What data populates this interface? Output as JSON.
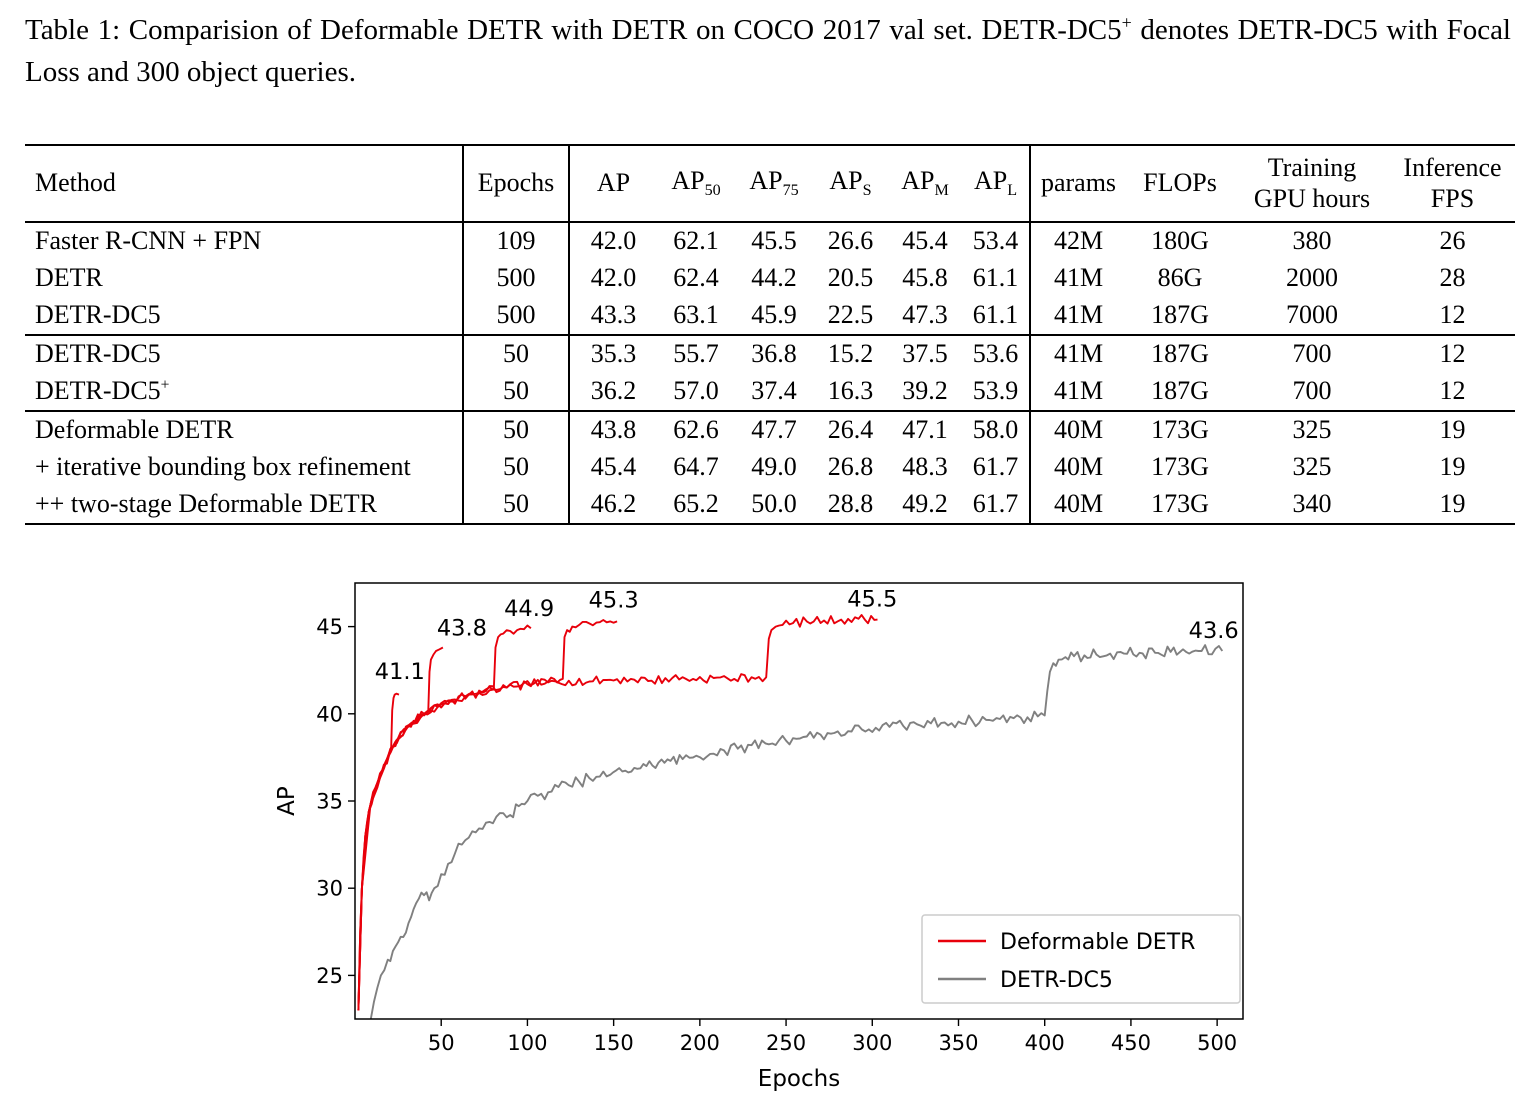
{
  "caption": {
    "part1": "Table 1:  Comparision of Deformable DETR with DETR on COCO 2017 val set. DETR-DC5",
    "sup": "+",
    "part2": " denotes DETR-DC5 with Focal Loss and 300 object queries."
  },
  "table": {
    "headers": [
      {
        "label": "Method"
      },
      {
        "label": "Epochs"
      },
      {
        "label": "AP"
      },
      {
        "label": "AP",
        "sub": "50"
      },
      {
        "label": "AP",
        "sub": "75"
      },
      {
        "label": "AP",
        "sub": "S"
      },
      {
        "label": "AP",
        "sub": "M"
      },
      {
        "label": "AP",
        "sub": "L"
      },
      {
        "label": "params"
      },
      {
        "label": "FLOPs"
      },
      {
        "label": "Training",
        "label2": "GPU hours"
      },
      {
        "label": "Inference",
        "label2": "FPS"
      }
    ],
    "groups": [
      {
        "rows": [
          {
            "method": "Faster R-CNN + FPN",
            "values": [
              "109",
              "42.0",
              "62.1",
              "45.5",
              "26.6",
              "45.4",
              "53.4",
              "42M",
              "180G",
              "380",
              "26"
            ]
          },
          {
            "method": "DETR",
            "values": [
              "500",
              "42.0",
              "62.4",
              "44.2",
              "20.5",
              "45.8",
              "61.1",
              "41M",
              "86G",
              "2000",
              "28"
            ]
          },
          {
            "method": "DETR-DC5",
            "values": [
              "500",
              "43.3",
              "63.1",
              "45.9",
              "22.5",
              "47.3",
              "61.1",
              "41M",
              "187G",
              "7000",
              "12"
            ]
          }
        ]
      },
      {
        "rows": [
          {
            "method": "DETR-DC5",
            "values": [
              "50",
              "35.3",
              "55.7",
              "36.8",
              "15.2",
              "37.5",
              "53.6",
              "41M",
              "187G",
              "700",
              "12"
            ]
          },
          {
            "method": "DETR-DC5",
            "method_sup": "+",
            "values": [
              "50",
              "36.2",
              "57.0",
              "37.4",
              "16.3",
              "39.2",
              "53.9",
              "41M",
              "187G",
              "700",
              "12"
            ]
          }
        ]
      },
      {
        "rows": [
          {
            "method": "Deformable DETR",
            "values": [
              "50",
              "43.8",
              "62.6",
              "47.7",
              "26.4",
              "47.1",
              "58.0",
              "40M",
              "173G",
              "325",
              "19"
            ]
          },
          {
            "method": "+ iterative bounding box refinement",
            "values": [
              "50",
              "45.4",
              "64.7",
              "49.0",
              "26.8",
              "48.3",
              "61.7",
              "40M",
              "173G",
              "325",
              "19"
            ]
          },
          {
            "method": "++ two-stage Deformable DETR",
            "values": [
              "50",
              "46.2",
              "65.2",
              "50.0",
              "28.8",
              "49.2",
              "61.7",
              "40M",
              "173G",
              "340",
              "19"
            ]
          }
        ]
      }
    ]
  },
  "chart_data": {
    "type": "line",
    "title": "",
    "xlabel": "Epochs",
    "ylabel": "AP",
    "xlim": [
      0,
      515
    ],
    "ylim": [
      22.5,
      47.5
    ],
    "xticks": [
      50,
      100,
      150,
      200,
      250,
      300,
      350,
      400,
      450,
      500
    ],
    "yticks": [
      25,
      30,
      35,
      40,
      45
    ],
    "grid": false,
    "legend": {
      "position": "lower right",
      "entries": [
        {
          "label": "Deformable DETR",
          "color": "#e8000b"
        },
        {
          "label": "DETR-DC5",
          "color": "#808080"
        }
      ]
    },
    "annotations": [
      {
        "text": "41.1",
        "x": 26,
        "y": 42.0
      },
      {
        "text": "43.8",
        "x": 62,
        "y": 44.5
      },
      {
        "text": "44.9",
        "x": 101,
        "y": 45.6
      },
      {
        "text": "45.3",
        "x": 150,
        "y": 46.1
      },
      {
        "text": "45.5",
        "x": 300,
        "y": 46.15
      },
      {
        "text": "43.6",
        "x": 498,
        "y": 44.35
      }
    ],
    "series": [
      {
        "name": "Deformable DETR (25-epoch run, final AP 41.1)",
        "color": "#e8000b",
        "noise": 0.22,
        "points": [
          [
            2,
            23.0
          ],
          [
            3,
            27.5
          ],
          [
            4,
            30.0
          ],
          [
            5,
            31.8
          ],
          [
            6,
            33.0
          ],
          [
            7,
            33.8
          ],
          [
            8,
            34.4
          ],
          [
            10,
            35.2
          ],
          [
            12,
            35.8
          ],
          [
            14,
            36.3
          ],
          [
            16,
            36.8
          ],
          [
            18,
            37.2
          ],
          [
            20,
            37.8
          ],
          [
            21,
            38.1
          ],
          [
            21.6,
            40.2
          ],
          [
            22.3,
            40.9
          ],
          [
            23,
            41.1
          ],
          [
            24,
            41.15
          ],
          [
            25.5,
            41.1
          ]
        ]
      },
      {
        "name": "Deformable DETR (50-epoch run, final AP 43.8)",
        "color": "#e8000b",
        "noise": 0.22,
        "points": [
          [
            2,
            23.0
          ],
          [
            3,
            27.5
          ],
          [
            4,
            30.0
          ],
          [
            6,
            33.0
          ],
          [
            8,
            34.4
          ],
          [
            10,
            35.2
          ],
          [
            13,
            36.0
          ],
          [
            16,
            36.8
          ],
          [
            19,
            37.5
          ],
          [
            22,
            38.1
          ],
          [
            25,
            38.6
          ],
          [
            28,
            39.0
          ],
          [
            31,
            39.3
          ],
          [
            34,
            39.6
          ],
          [
            37,
            39.8
          ],
          [
            40,
            40.0
          ],
          [
            42.5,
            40.2
          ],
          [
            43.2,
            42.4
          ],
          [
            44,
            43.1
          ],
          [
            45.5,
            43.4
          ],
          [
            47,
            43.6
          ],
          [
            49,
            43.7
          ],
          [
            51,
            43.8
          ]
        ]
      },
      {
        "name": "Deformable DETR (100-epoch run, final AP 44.9)",
        "color": "#e8000b",
        "noise": 0.22,
        "points": [
          [
            2,
            23.0
          ],
          [
            4,
            30.0
          ],
          [
            6,
            33.0
          ],
          [
            9,
            34.8
          ],
          [
            12,
            35.8
          ],
          [
            16,
            36.8
          ],
          [
            20,
            37.8
          ],
          [
            25,
            38.6
          ],
          [
            30,
            39.2
          ],
          [
            36,
            39.7
          ],
          [
            42,
            40.1
          ],
          [
            48,
            40.4
          ],
          [
            54,
            40.7
          ],
          [
            60,
            40.9
          ],
          [
            66,
            41.1
          ],
          [
            72,
            41.2
          ],
          [
            78,
            41.35
          ],
          [
            80.5,
            41.4
          ],
          [
            81.5,
            43.8
          ],
          [
            83,
            44.4
          ],
          [
            86,
            44.6
          ],
          [
            90,
            44.75
          ],
          [
            94,
            44.8
          ],
          [
            98,
            44.85
          ],
          [
            102,
            44.9
          ]
        ]
      },
      {
        "name": "Deformable DETR (150-epoch run, final AP 45.3)",
        "color": "#e8000b",
        "noise": 0.22,
        "points": [
          [
            2,
            23.0
          ],
          [
            4,
            30.0
          ],
          [
            8,
            34.4
          ],
          [
            13,
            36.0
          ],
          [
            19,
            37.5
          ],
          [
            26,
            38.7
          ],
          [
            33,
            39.5
          ],
          [
            40,
            40.0
          ],
          [
            48,
            40.4
          ],
          [
            56,
            40.8
          ],
          [
            64,
            41.0
          ],
          [
            72,
            41.2
          ],
          [
            80,
            41.4
          ],
          [
            88,
            41.5
          ],
          [
            96,
            41.6
          ],
          [
            104,
            41.75
          ],
          [
            112,
            41.85
          ],
          [
            119,
            41.95
          ],
          [
            120.5,
            42.0
          ],
          [
            121.5,
            44.4
          ],
          [
            123,
            44.8
          ],
          [
            126,
            45.0
          ],
          [
            130,
            45.1
          ],
          [
            136,
            45.18
          ],
          [
            142,
            45.25
          ],
          [
            148,
            45.3
          ],
          [
            152,
            45.3
          ]
        ]
      },
      {
        "name": "Deformable DETR (300-epoch run, final AP 45.5)",
        "color": "#e8000b",
        "noise": 0.26,
        "points": [
          [
            2,
            23.0
          ],
          [
            4,
            30.0
          ],
          [
            9,
            34.8
          ],
          [
            15,
            36.5
          ],
          [
            22,
            38.1
          ],
          [
            30,
            39.2
          ],
          [
            40,
            40.0
          ],
          [
            52,
            40.6
          ],
          [
            64,
            41.0
          ],
          [
            76,
            41.3
          ],
          [
            88,
            41.5
          ],
          [
            100,
            41.7
          ],
          [
            112,
            41.8
          ],
          [
            124,
            41.9
          ],
          [
            136,
            41.85
          ],
          [
            148,
            41.95
          ],
          [
            160,
            42.0
          ],
          [
            172,
            41.9
          ],
          [
            184,
            42.05
          ],
          [
            196,
            42.0
          ],
          [
            208,
            42.05
          ],
          [
            220,
            42.0
          ],
          [
            230,
            42.1
          ],
          [
            238.5,
            42.1
          ],
          [
            240,
            44.3
          ],
          [
            241.5,
            44.8
          ],
          [
            244,
            45.0
          ],
          [
            248,
            45.1
          ],
          [
            254,
            45.2
          ],
          [
            262,
            45.3
          ],
          [
            272,
            45.35
          ],
          [
            282,
            45.4
          ],
          [
            292,
            45.45
          ],
          [
            303,
            45.4
          ]
        ]
      },
      {
        "name": "DETR-DC5 (500-epoch run, final AP 43.6)",
        "color": "#808080",
        "noise": 0.34,
        "points": [
          [
            9,
            22.4
          ],
          [
            11,
            23.5
          ],
          [
            13,
            24.3
          ],
          [
            15,
            25.0
          ],
          [
            17,
            25.3
          ],
          [
            19,
            25.9
          ],
          [
            22,
            26.4
          ],
          [
            25,
            26.9
          ],
          [
            28,
            27.2
          ],
          [
            31,
            28.0
          ],
          [
            34,
            28.8
          ],
          [
            37,
            29.4
          ],
          [
            40,
            29.6
          ],
          [
            43,
            29.3
          ],
          [
            46,
            30.0
          ],
          [
            50,
            30.8
          ],
          [
            54,
            31.4
          ],
          [
            58,
            32.0
          ],
          [
            62,
            32.5
          ],
          [
            66,
            32.9
          ],
          [
            70,
            33.2
          ],
          [
            74,
            33.4
          ],
          [
            78,
            33.8
          ],
          [
            82,
            34.1
          ],
          [
            86,
            34.3
          ],
          [
            90,
            34.2
          ],
          [
            95,
            34.7
          ],
          [
            100,
            35.0
          ],
          [
            106,
            35.3
          ],
          [
            112,
            35.5
          ],
          [
            118,
            35.8
          ],
          [
            124,
            35.9
          ],
          [
            130,
            36.1
          ],
          [
            136,
            36.3
          ],
          [
            142,
            36.4
          ],
          [
            148,
            36.5
          ],
          [
            155,
            36.7
          ],
          [
            162,
            36.9
          ],
          [
            169,
            37.0
          ],
          [
            176,
            37.2
          ],
          [
            183,
            37.3
          ],
          [
            190,
            37.4
          ],
          [
            198,
            37.6
          ],
          [
            206,
            37.7
          ],
          [
            214,
            37.9
          ],
          [
            222,
            38.0
          ],
          [
            230,
            38.2
          ],
          [
            238,
            38.3
          ],
          [
            246,
            38.5
          ],
          [
            254,
            38.6
          ],
          [
            262,
            38.7
          ],
          [
            270,
            38.8
          ],
          [
            278,
            38.9
          ],
          [
            286,
            39.0
          ],
          [
            294,
            39.1
          ],
          [
            302,
            39.2
          ],
          [
            310,
            39.25
          ],
          [
            318,
            39.3
          ],
          [
            326,
            39.4
          ],
          [
            334,
            39.45
          ],
          [
            342,
            39.5
          ],
          [
            350,
            39.55
          ],
          [
            358,
            39.6
          ],
          [
            366,
            39.65
          ],
          [
            374,
            39.7
          ],
          [
            382,
            39.75
          ],
          [
            390,
            39.8
          ],
          [
            396,
            39.85
          ],
          [
            400,
            39.9
          ],
          [
            401.5,
            41.3
          ],
          [
            403,
            42.4
          ],
          [
            405,
            42.9
          ],
          [
            408,
            43.1
          ],
          [
            412,
            43.25
          ],
          [
            417,
            43.3
          ],
          [
            423,
            43.35
          ],
          [
            430,
            43.4
          ],
          [
            438,
            43.45
          ],
          [
            446,
            43.45
          ],
          [
            455,
            43.5
          ],
          [
            464,
            43.5
          ],
          [
            473,
            43.55
          ],
          [
            482,
            43.55
          ],
          [
            491,
            43.6
          ],
          [
            503,
            43.6
          ]
        ]
      }
    ]
  }
}
